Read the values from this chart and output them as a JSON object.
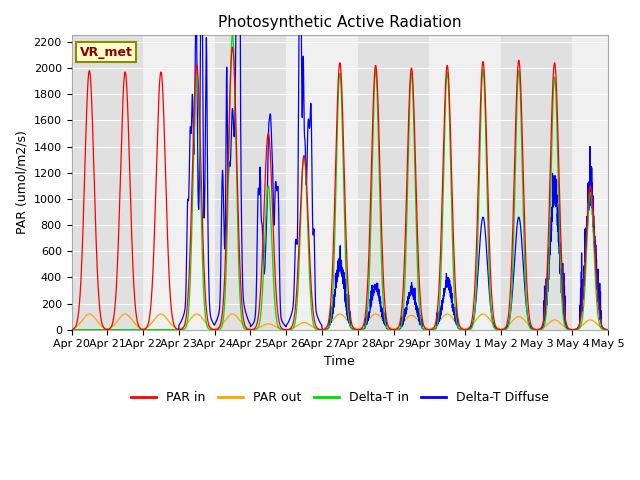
{
  "title": "Photosynthetic Active Radiation",
  "ylabel": "PAR (umol/m2/s)",
  "xlabel": "Time",
  "ylim": [
    0,
    2250
  ],
  "yticks": [
    0,
    200,
    400,
    600,
    800,
    1000,
    1200,
    1400,
    1600,
    1800,
    2000,
    2200
  ],
  "xtick_labels": [
    "Apr 20",
    "Apr 21",
    "Apr 22",
    "Apr 23",
    "Apr 24",
    "Apr 25",
    "Apr 26",
    "Apr 27",
    "Apr 28",
    "Apr 29",
    "Apr 30",
    "May 1",
    "May 2",
    "May 3",
    "May 4",
    "May 5"
  ],
  "colors": {
    "PAR_in": "#ff0000",
    "PAR_out": "#ffa500",
    "Delta_T_in": "#00dd00",
    "Delta_T_Diffuse": "#0000ff",
    "bg_gray": "#e0e0e0",
    "bg_white": "#f0f0f0"
  },
  "legend_labels": [
    "PAR in",
    "PAR out",
    "Delta-T in",
    "Delta-T Diffuse"
  ],
  "source_label": "VR_met",
  "n_days": 15,
  "pts_per_day": 288,
  "par_in_peaks": [
    1980,
    1970,
    1970,
    2030,
    2160,
    1500,
    1330,
    2040,
    2020,
    2000,
    2020,
    2050,
    2060,
    2040,
    1100
  ],
  "par_out_peaks": [
    120,
    120,
    120,
    120,
    120,
    45,
    55,
    120,
    120,
    110,
    120,
    120,
    100,
    75,
    75
  ],
  "dtin_peaks": [
    0,
    0,
    0,
    1950,
    2260,
    1100,
    1330,
    1960,
    1980,
    1960,
    1970,
    1990,
    1980,
    1930,
    1050
  ],
  "dtdiff_peaks": [
    0,
    0,
    0,
    900,
    1100,
    600,
    860,
    450,
    300,
    270,
    330,
    860,
    860,
    960,
    960
  ],
  "par_in_width": [
    0.13,
    0.13,
    0.13,
    0.12,
    0.12,
    0.12,
    0.12,
    0.12,
    0.12,
    0.12,
    0.12,
    0.12,
    0.12,
    0.12,
    0.12
  ],
  "par_out_width": [
    0.2,
    0.2,
    0.2,
    0.2,
    0.2,
    0.18,
    0.18,
    0.2,
    0.2,
    0.2,
    0.2,
    0.2,
    0.2,
    0.18,
    0.18
  ],
  "dtin_width": [
    0.0,
    0.0,
    0.0,
    0.1,
    0.1,
    0.1,
    0.1,
    0.1,
    0.1,
    0.1,
    0.1,
    0.1,
    0.1,
    0.1,
    0.1
  ],
  "cloudy_days": [
    3,
    4,
    5,
    6
  ],
  "jagged_days": [
    3,
    4,
    5,
    6,
    7,
    8,
    9,
    10,
    13,
    14
  ]
}
